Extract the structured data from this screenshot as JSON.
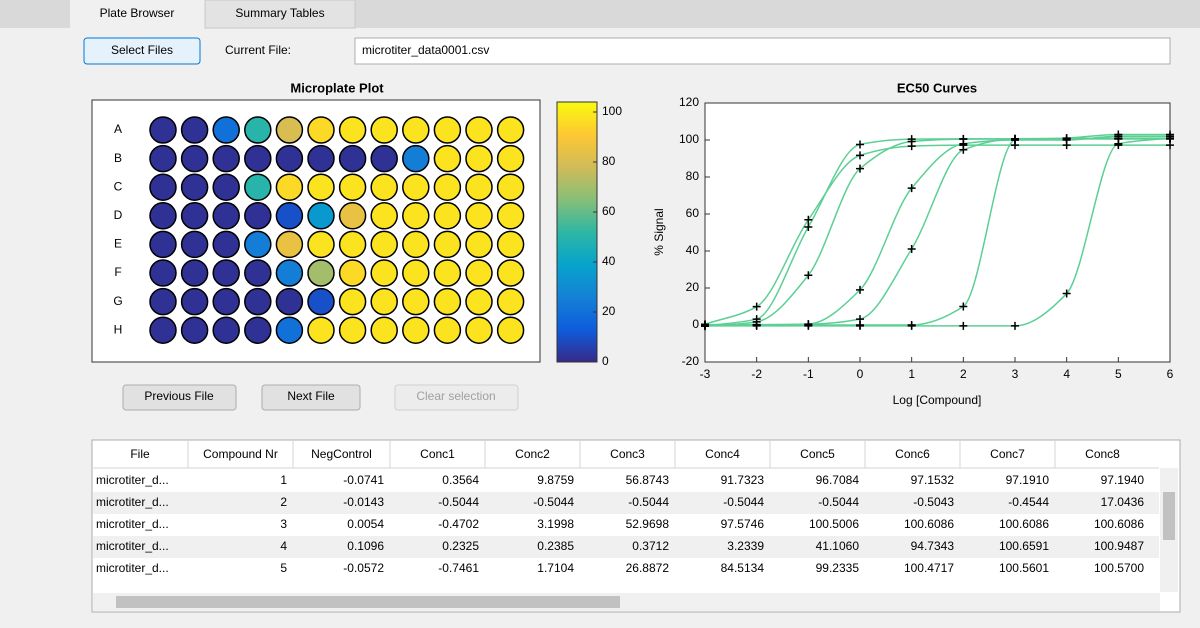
{
  "tabs": [
    "Plate Browser",
    "Summary Tables"
  ],
  "controls": {
    "select_files": "Select Files",
    "current_file_label": "Current File:",
    "current_file": "microtiter_data0001.csv",
    "previous_file": "Previous File",
    "next_file": "Next File",
    "clear_selection": "Clear selection"
  },
  "microplate": {
    "title": "Microplate Plot",
    "rows": [
      "A",
      "B",
      "C",
      "D",
      "E",
      "F",
      "G",
      "H"
    ],
    "values": [
      [
        2,
        2,
        20,
        50,
        80,
        95,
        98,
        98,
        98,
        98,
        98,
        98
      ],
      [
        2,
        2,
        2,
        2,
        2,
        2,
        2,
        2,
        25,
        98,
        98,
        98
      ],
      [
        2,
        2,
        2,
        50,
        95,
        98,
        98,
        98,
        98,
        98,
        98,
        98
      ],
      [
        2,
        2,
        2,
        2,
        10,
        35,
        85,
        98,
        98,
        98,
        98,
        98
      ],
      [
        2,
        2,
        2,
        25,
        85,
        98,
        98,
        98,
        98,
        98,
        98,
        98
      ],
      [
        2,
        2,
        2,
        2,
        25,
        70,
        95,
        98,
        98,
        98,
        98,
        98
      ],
      [
        2,
        2,
        2,
        2,
        2,
        10,
        98,
        98,
        98,
        98,
        98,
        98
      ],
      [
        2,
        2,
        2,
        2,
        20,
        98,
        98,
        98,
        98,
        98,
        98,
        98
      ]
    ],
    "clim": [
      0,
      104
    ],
    "colorbar_ticks": [
      0,
      20,
      40,
      60,
      80,
      100
    ],
    "colormap": [
      "#352a87",
      "#0f5cdd",
      "#1481d6",
      "#06a4ca",
      "#2eb7a4",
      "#87bf77",
      "#d1bb59",
      "#fec832",
      "#f9fb0e"
    ]
  },
  "chart_data": {
    "type": "line",
    "title": "EC50 Curves",
    "x_label": "Log [Compound]",
    "y_label": "% Signal",
    "x": [
      -3,
      -2,
      -1,
      0,
      1,
      2,
      3,
      4,
      5,
      6
    ],
    "series": [
      {
        "color": "#5ccf94",
        "values": [
          0.4,
          9.9,
          56.9,
          91.7,
          96.7,
          97.2,
          97.2,
          97.2,
          97.2,
          97.2
        ]
      },
      {
        "color": "#5ccf94",
        "values": [
          -0.5,
          -0.5,
          -0.5,
          -0.5,
          -0.5,
          -0.5,
          -0.5,
          17,
          98,
          101
        ]
      },
      {
        "color": "#5ccf94",
        "values": [
          -0.5,
          3.2,
          53,
          97.6,
          100.5,
          100.6,
          100.6,
          100.6,
          100.6,
          100.6
        ]
      },
      {
        "color": "#5ccf94",
        "values": [
          0.2,
          0.2,
          0.4,
          3.2,
          41.1,
          94.7,
          100.7,
          100.9,
          101,
          101
        ]
      },
      {
        "color": "#5ccf94",
        "values": [
          -0.7,
          1.7,
          26.9,
          84.5,
          99.2,
          100.5,
          100.6,
          100.6,
          100.6,
          100.6
        ]
      },
      {
        "color": "#5ccf94",
        "values": [
          0,
          0,
          0.5,
          19,
          74,
          98,
          100,
          100,
          102,
          102
        ]
      },
      {
        "color": "#5ccf94",
        "values": [
          0,
          0,
          0,
          0,
          0,
          10,
          100,
          101,
          103,
          103
        ]
      }
    ],
    "xlim": [
      -3,
      6
    ],
    "ylim": [
      -20,
      120
    ],
    "xticks": [
      -3,
      -2,
      -1,
      0,
      1,
      2,
      3,
      4,
      5,
      6
    ],
    "yticks": [
      -20,
      0,
      20,
      40,
      60,
      80,
      100,
      120
    ],
    "marker": "+",
    "marker_color": "#000000"
  },
  "table": {
    "columns": [
      "File",
      "Compound Nr",
      "NegControl",
      "Conc1",
      "Conc2",
      "Conc3",
      "Conc4",
      "Conc5",
      "Conc6",
      "Conc7",
      "Conc8"
    ],
    "rows": [
      [
        "microtiter_d...",
        "1",
        "-0.0741",
        "0.3564",
        "9.8759",
        "56.8743",
        "91.7323",
        "96.7084",
        "97.1532",
        "97.1910",
        "97.1940"
      ],
      [
        "microtiter_d...",
        "2",
        "-0.0143",
        "-0.5044",
        "-0.5044",
        "-0.5044",
        "-0.5044",
        "-0.5044",
        "-0.5043",
        "-0.4544",
        "17.0436"
      ],
      [
        "microtiter_d...",
        "3",
        "0.0054",
        "-0.4702",
        "3.1998",
        "52.9698",
        "97.5746",
        "100.5006",
        "100.6086",
        "100.6086",
        "100.6086"
      ],
      [
        "microtiter_d...",
        "4",
        "0.1096",
        "0.2325",
        "0.2385",
        "0.3712",
        "3.2339",
        "41.1060",
        "94.7343",
        "100.6591",
        "100.9487"
      ],
      [
        "microtiter_d...",
        "5",
        "-0.0572",
        "-0.7461",
        "1.7104",
        "26.8872",
        "84.5134",
        "99.2335",
        "100.4717",
        "100.5601",
        "100.5700"
      ]
    ]
  }
}
